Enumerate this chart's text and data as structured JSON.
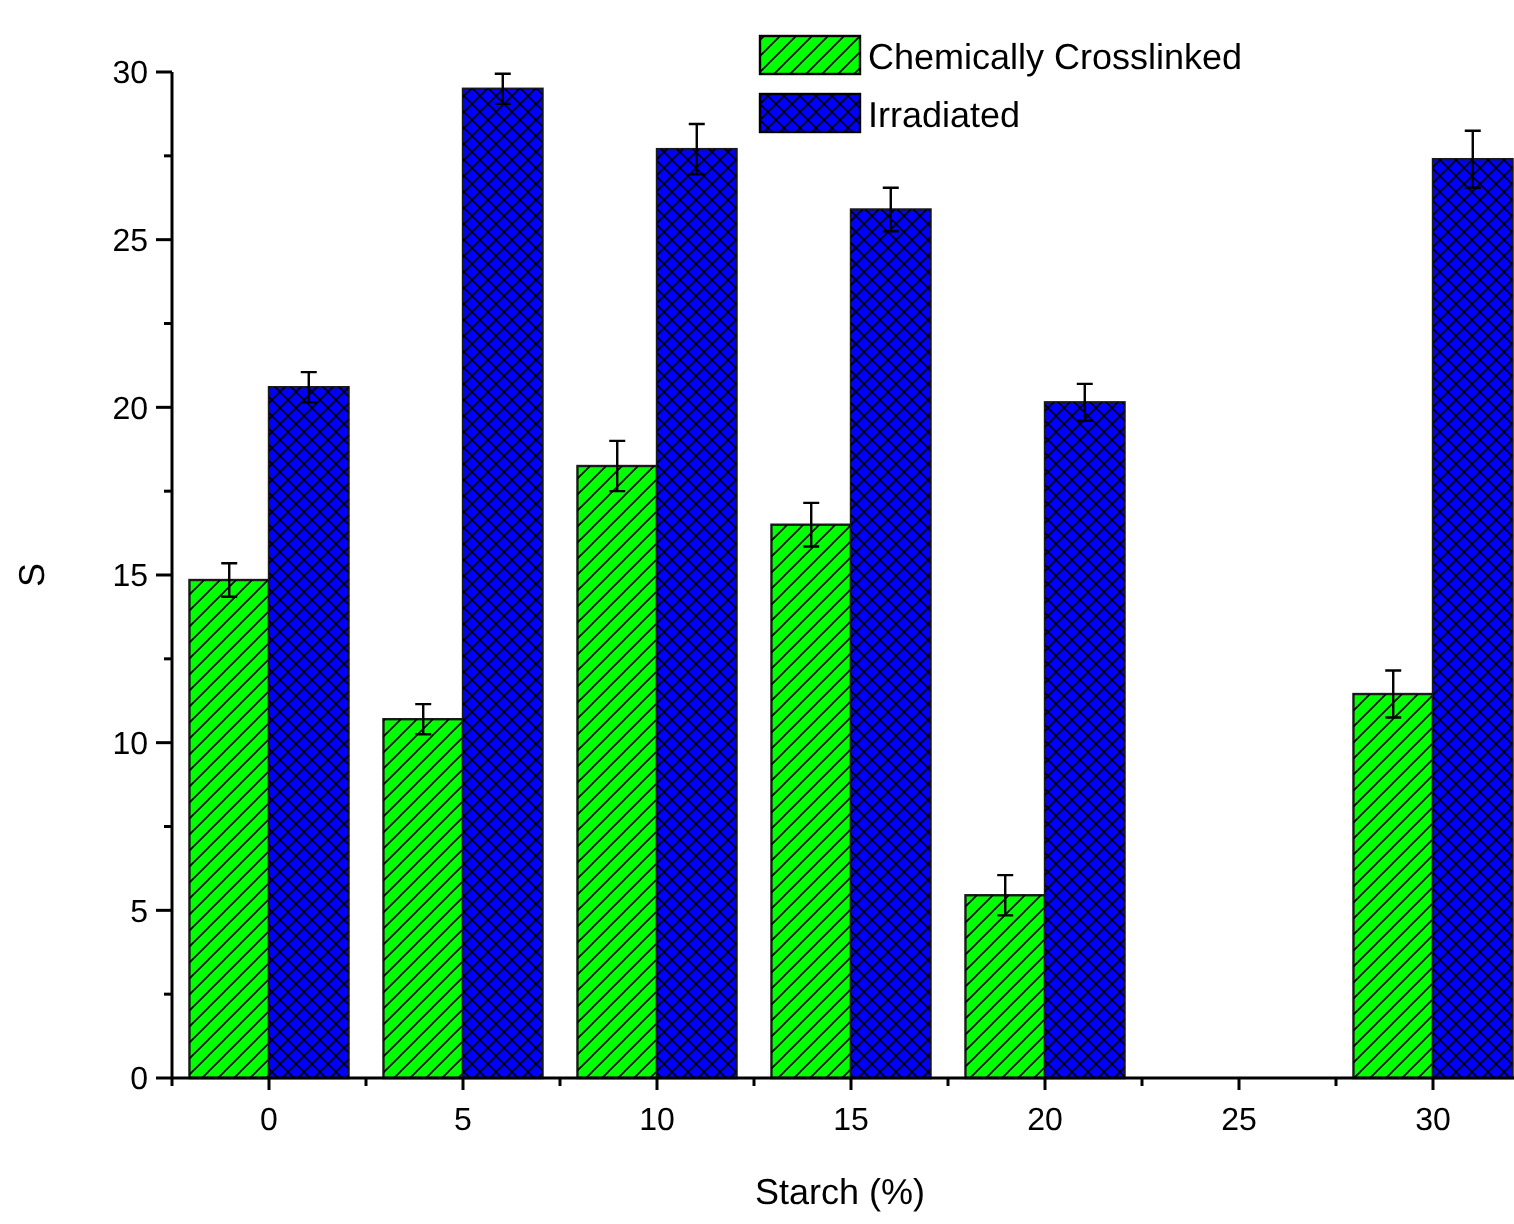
{
  "chart_data": {
    "type": "bar",
    "xlabel": "Starch (%)",
    "ylabel": "S",
    "categories": [
      "0",
      "5",
      "10",
      "15",
      "20",
      "25",
      "30"
    ],
    "series": [
      {
        "name": "Chemically Crosslinked",
        "color": "#00ff00",
        "values": [
          14.85,
          10.7,
          18.25,
          16.5,
          5.45,
          null,
          11.45
        ],
        "errors": [
          0.5,
          0.45,
          0.75,
          0.65,
          0.6,
          null,
          0.7
        ]
      },
      {
        "name": "Irradiated",
        "color": "#0000ff",
        "values": [
          20.6,
          29.5,
          27.7,
          25.9,
          20.15,
          null,
          27.4
        ],
        "errors": [
          0.45,
          0.45,
          0.75,
          0.65,
          0.55,
          null,
          0.85
        ]
      }
    ],
    "ylim": [
      0,
      30
    ],
    "yticks": [
      0,
      {
        "value": 2.5,
        "label": null
      },
      5,
      {
        "value": 7.5,
        "label": null
      },
      10,
      {
        "value": 12.5,
        "label": null
      },
      15,
      {
        "value": 17.5,
        "label": null
      },
      20,
      {
        "value": 22.5,
        "label": null
      },
      25,
      {
        "value": 27.5,
        "label": null
      },
      30
    ],
    "legend": "top right",
    "grid": false
  }
}
